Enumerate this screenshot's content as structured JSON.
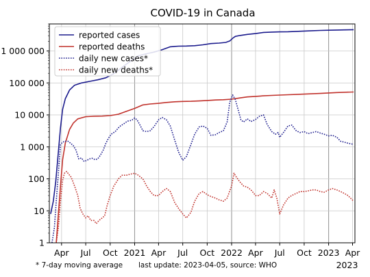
{
  "chart_data": {
    "type": "line",
    "title": "COVID-19 in Canada",
    "xlabel": "",
    "ylabel": "",
    "y_scale": "log",
    "ylim": [
      1,
      7000000
    ],
    "xlim": [
      "2020-02-15",
      "2023-04-10"
    ],
    "grid": true,
    "legend_position": "top-left",
    "x_ticks": [
      {
        "date": "2020-04-01",
        "label": "Apr"
      },
      {
        "date": "2020-07-01",
        "label": "Jul"
      },
      {
        "date": "2020-10-01",
        "label": "Oct"
      },
      {
        "date": "2021-01-01",
        "label": "2021"
      },
      {
        "date": "2021-04-01",
        "label": "Apr"
      },
      {
        "date": "2021-07-01",
        "label": "Jul"
      },
      {
        "date": "2021-10-01",
        "label": "Oct"
      },
      {
        "date": "2022-01-01",
        "label": "2022"
      },
      {
        "date": "2022-04-01",
        "label": "Apr"
      },
      {
        "date": "2022-07-01",
        "label": "Jul"
      },
      {
        "date": "2022-10-01",
        "label": "Oct"
      },
      {
        "date": "2023-01-01",
        "label": "2023"
      },
      {
        "date": "2023-04-01",
        "label": "Apr"
      }
    ],
    "x_tick_extra_label": "2023",
    "y_ticks": [
      {
        "value": 1,
        "label": "1"
      },
      {
        "value": 10,
        "label": "10"
      },
      {
        "value": 100,
        "label": "100"
      },
      {
        "value": 1000,
        "label": "1 000"
      },
      {
        "value": 10000,
        "label": "10 000"
      },
      {
        "value": 100000,
        "label": "100 000"
      },
      {
        "value": 1000000,
        "label": "1 000 000"
      }
    ],
    "series": [
      {
        "name": "reported cases",
        "color": "#1a1a8c",
        "style": "solid",
        "x": [
          "2020-02-20",
          "2020-03-01",
          "2020-03-10",
          "2020-03-20",
          "2020-03-28",
          "2020-04-05",
          "2020-04-15",
          "2020-05-01",
          "2020-05-20",
          "2020-06-15",
          "2020-07-15",
          "2020-08-15",
          "2020-09-15",
          "2020-10-15",
          "2020-11-15",
          "2020-12-15",
          "2021-01-15",
          "2021-02-15",
          "2021-03-15",
          "2021-04-15",
          "2021-05-15",
          "2021-06-15",
          "2021-07-15",
          "2021-08-15",
          "2021-09-15",
          "2021-10-15",
          "2021-11-15",
          "2021-12-10",
          "2021-12-25",
          "2022-01-05",
          "2022-01-15",
          "2022-02-01",
          "2022-03-01",
          "2022-04-01",
          "2022-05-01",
          "2022-06-01",
          "2022-07-01",
          "2022-08-01",
          "2022-09-01",
          "2022-10-01",
          "2022-11-01",
          "2022-12-01",
          "2023-01-01",
          "2023-02-01",
          "2023-03-01",
          "2023-04-05"
        ],
        "y": [
          8,
          20,
          80,
          700,
          4000,
          15000,
          32000,
          60000,
          85000,
          100000,
          112000,
          125000,
          145000,
          195000,
          310000,
          470000,
          710000,
          820000,
          920000,
          1100000,
          1350000,
          1410000,
          1425000,
          1460000,
          1560000,
          1700000,
          1760000,
          1850000,
          2050000,
          2500000,
          2850000,
          3050000,
          3300000,
          3500000,
          3800000,
          3900000,
          3950000,
          4000000,
          4100000,
          4200000,
          4300000,
          4380000,
          4450000,
          4510000,
          4570000,
          4620000
        ]
      },
      {
        "name": "reported deaths",
        "color": "#c0302a",
        "style": "solid",
        "x": [
          "2020-03-12",
          "2020-03-20",
          "2020-03-28",
          "2020-04-05",
          "2020-04-15",
          "2020-05-01",
          "2020-05-15",
          "2020-06-01",
          "2020-07-01",
          "2020-08-01",
          "2020-09-01",
          "2020-10-01",
          "2020-11-01",
          "2020-12-01",
          "2021-01-01",
          "2021-02-01",
          "2021-03-01",
          "2021-04-01",
          "2021-05-01",
          "2021-06-01",
          "2021-07-01",
          "2021-08-01",
          "2021-09-01",
          "2021-10-01",
          "2021-11-01",
          "2021-12-01",
          "2022-01-01",
          "2022-02-01",
          "2022-03-01",
          "2022-04-01",
          "2022-05-01",
          "2022-06-01",
          "2022-07-01",
          "2022-08-01",
          "2022-09-01",
          "2022-10-01",
          "2022-11-01",
          "2022-12-01",
          "2023-01-01",
          "2023-02-01",
          "2023-03-01",
          "2023-04-05"
        ],
        "y": [
          1,
          8,
          60,
          400,
          1300,
          3500,
          5500,
          7500,
          8800,
          9100,
          9200,
          9500,
          10500,
          13000,
          16000,
          20500,
          22000,
          23000,
          24500,
          25800,
          26400,
          26700,
          27300,
          28300,
          29200,
          29900,
          31000,
          34000,
          36500,
          38000,
          39500,
          40800,
          41800,
          42800,
          43600,
          44700,
          45800,
          46900,
          48500,
          50000,
          51000,
          52000
        ]
      },
      {
        "name": "daily new cases*",
        "color": "#1a1a8c",
        "style": "dotted",
        "x": [
          "2020-02-25",
          "2020-03-05",
          "2020-03-12",
          "2020-03-20",
          "2020-03-28",
          "2020-04-05",
          "2020-04-15",
          "2020-04-25",
          "2020-05-05",
          "2020-05-15",
          "2020-05-25",
          "2020-06-05",
          "2020-06-15",
          "2020-06-25",
          "2020-07-05",
          "2020-07-15",
          "2020-07-25",
          "2020-08-05",
          "2020-08-15",
          "2020-08-25",
          "2020-09-05",
          "2020-09-15",
          "2020-09-25",
          "2020-10-05",
          "2020-10-20",
          "2020-11-05",
          "2020-11-20",
          "2020-12-05",
          "2020-12-20",
          "2021-01-01",
          "2021-01-10",
          "2021-01-20",
          "2021-02-01",
          "2021-02-15",
          "2021-03-01",
          "2021-03-15",
          "2021-04-01",
          "2021-04-15",
          "2021-05-01",
          "2021-05-15",
          "2021-06-01",
          "2021-06-15",
          "2021-07-01",
          "2021-07-15",
          "2021-08-01",
          "2021-08-15",
          "2021-09-01",
          "2021-09-15",
          "2021-10-01",
          "2021-10-15",
          "2021-11-01",
          "2021-11-15",
          "2021-12-01",
          "2021-12-15",
          "2021-12-25",
          "2022-01-05",
          "2022-01-15",
          "2022-01-25",
          "2022-02-05",
          "2022-02-15",
          "2022-03-01",
          "2022-03-15",
          "2022-04-01",
          "2022-04-15",
          "2022-05-01",
          "2022-05-15",
          "2022-06-01",
          "2022-06-15",
          "2022-06-25",
          "2022-07-01",
          "2022-07-15",
          "2022-08-01",
          "2022-08-15",
          "2022-09-01",
          "2022-09-15",
          "2022-10-01",
          "2022-10-15",
          "2022-11-01",
          "2022-11-15",
          "2022-12-01",
          "2022-12-15",
          "2023-01-01",
          "2023-01-15",
          "2023-02-01",
          "2023-02-15",
          "2023-03-01",
          "2023-03-15",
          "2023-04-05"
        ],
        "y": [
          1,
          3,
          20,
          150,
          1200,
          1400,
          1500,
          1500,
          1300,
          1100,
          800,
          420,
          450,
          350,
          380,
          420,
          440,
          400,
          420,
          550,
          800,
          1300,
          1900,
          2500,
          3000,
          4300,
          5200,
          6400,
          6700,
          8000,
          7000,
          5000,
          3200,
          3000,
          3200,
          4300,
          7000,
          8300,
          7000,
          4500,
          1600,
          700,
          380,
          500,
          1200,
          2500,
          4200,
          4500,
          3800,
          2300,
          2400,
          2800,
          3200,
          6000,
          25000,
          42000,
          30000,
          15000,
          7000,
          6000,
          7500,
          6200,
          7200,
          9000,
          10000,
          5000,
          3000,
          2500,
          2800,
          2000,
          2800,
          4500,
          4800,
          3200,
          2800,
          3000,
          2600,
          2800,
          3000,
          2700,
          2500,
          2200,
          2300,
          2000,
          1500,
          1400,
          1300,
          1200
        ]
      },
      {
        "name": "daily new deaths*",
        "color": "#c0302a",
        "style": "dotted",
        "x": [
          "2020-03-12",
          "2020-03-20",
          "2020-03-28",
          "2020-04-05",
          "2020-04-12",
          "2020-04-20",
          "2020-04-28",
          "2020-05-05",
          "2020-05-12",
          "2020-05-20",
          "2020-06-01",
          "2020-06-10",
          "2020-06-20",
          "2020-07-01",
          "2020-07-10",
          "2020-07-20",
          "2020-08-01",
          "2020-08-10",
          "2020-08-20",
          "2020-09-01",
          "2020-09-10",
          "2020-09-20",
          "2020-10-01",
          "2020-10-15",
          "2020-11-01",
          "2020-11-15",
          "2020-12-01",
          "2020-12-15",
          "2021-01-01",
          "2021-01-15",
          "2021-02-01",
          "2021-02-15",
          "2021-03-01",
          "2021-03-15",
          "2021-04-01",
          "2021-04-15",
          "2021-05-01",
          "2021-05-15",
          "2021-06-01",
          "2021-06-15",
          "2021-07-01",
          "2021-07-15",
          "2021-08-01",
          "2021-08-15",
          "2021-09-01",
          "2021-09-15",
          "2021-10-01",
          "2021-10-15",
          "2021-11-01",
          "2021-11-15",
          "2021-12-01",
          "2021-12-15",
          "2022-01-01",
          "2022-01-10",
          "2022-01-20",
          "2022-02-01",
          "2022-02-15",
          "2022-03-01",
          "2022-03-15",
          "2022-04-01",
          "2022-04-15",
          "2022-05-01",
          "2022-05-15",
          "2022-06-01",
          "2022-06-10",
          "2022-06-20",
          "2022-07-01",
          "2022-07-15",
          "2022-08-01",
          "2022-08-15",
          "2022-09-01",
          "2022-09-15",
          "2022-10-01",
          "2022-10-15",
          "2022-11-01",
          "2022-11-15",
          "2022-12-01",
          "2022-12-15",
          "2023-01-01",
          "2023-01-15",
          "2023-02-01",
          "2023-02-15",
          "2023-03-01",
          "2023-03-15",
          "2023-04-05"
        ],
        "y": [
          1,
          3,
          20,
          90,
          150,
          170,
          140,
          120,
          90,
          60,
          30,
          12,
          8,
          6,
          7,
          5,
          5,
          4,
          5,
          6,
          7,
          15,
          30,
          60,
          100,
          130,
          130,
          140,
          150,
          130,
          100,
          60,
          40,
          30,
          30,
          40,
          50,
          40,
          18,
          12,
          8,
          6,
          9,
          20,
          35,
          40,
          32,
          28,
          25,
          22,
          20,
          25,
          60,
          150,
          110,
          80,
          60,
          55,
          45,
          30,
          30,
          40,
          35,
          25,
          45,
          25,
          8,
          15,
          25,
          30,
          35,
          40,
          40,
          42,
          45,
          45,
          40,
          38,
          45,
          50,
          45,
          40,
          35,
          30,
          20
        ]
      }
    ],
    "footnote_left": "* 7-day moving average",
    "footnote_right": "last update: 2023-04-05, source: WHO"
  }
}
